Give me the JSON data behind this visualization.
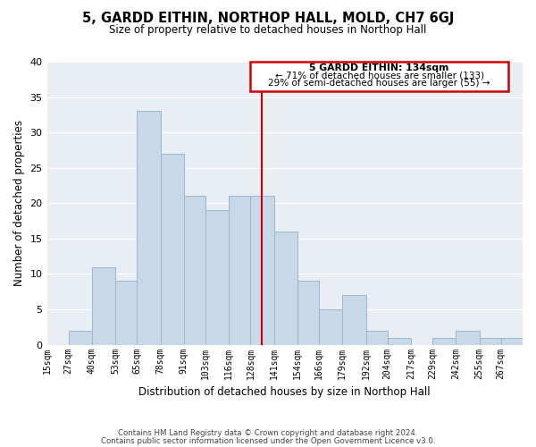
{
  "title": "5, GARDD EITHIN, NORTHOP HALL, MOLD, CH7 6GJ",
  "subtitle": "Size of property relative to detached houses in Northop Hall",
  "xlabel": "Distribution of detached houses by size in Northop Hall",
  "ylabel": "Number of detached properties",
  "bin_labels": [
    "15sqm",
    "27sqm",
    "40sqm",
    "53sqm",
    "65sqm",
    "78sqm",
    "91sqm",
    "103sqm",
    "116sqm",
    "128sqm",
    "141sqm",
    "154sqm",
    "166sqm",
    "179sqm",
    "192sqm",
    "204sqm",
    "217sqm",
    "229sqm",
    "242sqm",
    "255sqm",
    "267sqm"
  ],
  "bin_edges": [
    15,
    27,
    40,
    53,
    65,
    78,
    91,
    103,
    116,
    128,
    141,
    154,
    166,
    179,
    192,
    204,
    217,
    229,
    242,
    255,
    267,
    279
  ],
  "bar_heights": [
    0,
    2,
    11,
    9,
    33,
    27,
    21,
    19,
    21,
    21,
    16,
    9,
    5,
    7,
    2,
    1,
    0,
    1,
    2,
    1,
    1
  ],
  "bar_color": "#c8d8e8",
  "bar_edgecolor": "#9ab8cc",
  "vline_x": 134,
  "vline_color": "#cc0000",
  "annotation_title": "5 GARDD EITHIN: 134sqm",
  "annotation_line1": "← 71% of detached houses are smaller (133)",
  "annotation_line2": "29% of semi-detached houses are larger (55) →",
  "annotation_box_edgecolor": "#cc0000",
  "annotation_box_facecolor": "#ffffff",
  "ylim": [
    0,
    40
  ],
  "yticks": [
    0,
    5,
    10,
    15,
    20,
    25,
    30,
    35,
    40
  ],
  "plot_bg_color": "#e8eef4",
  "background_color": "#ffffff",
  "grid_color": "#ffffff",
  "footer1": "Contains HM Land Registry data © Crown copyright and database right 2024.",
  "footer2": "Contains public sector information licensed under the Open Government Licence v3.0."
}
